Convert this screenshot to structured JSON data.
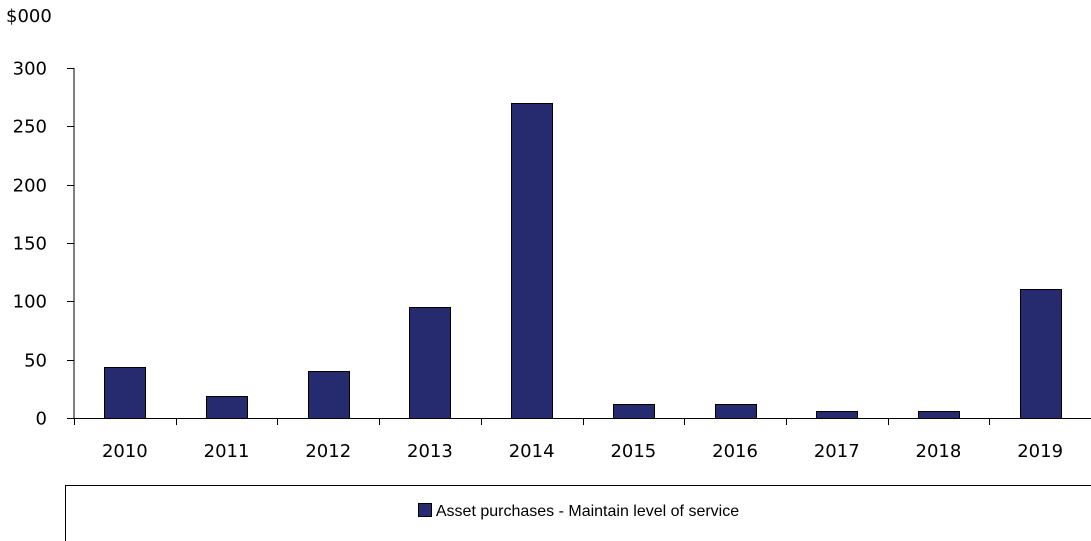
{
  "chart_data": {
    "type": "bar",
    "unit_label": "$000",
    "categories": [
      "2010",
      "2011",
      "2012",
      "2013",
      "2014",
      "2015",
      "2016",
      "2017",
      "2018",
      "2019"
    ],
    "series": [
      {
        "name": "Asset purchases - Maintain level of service",
        "values": [
          44,
          19,
          40,
          95,
          270,
          12,
          12,
          6,
          6,
          111
        ],
        "color": "#262a6e"
      }
    ],
    "ylim": [
      0,
      300
    ],
    "yticks": [
      "0",
      "50",
      "100",
      "150",
      "200",
      "250",
      "300"
    ],
    "grid": false,
    "legend_position": "bottom"
  }
}
